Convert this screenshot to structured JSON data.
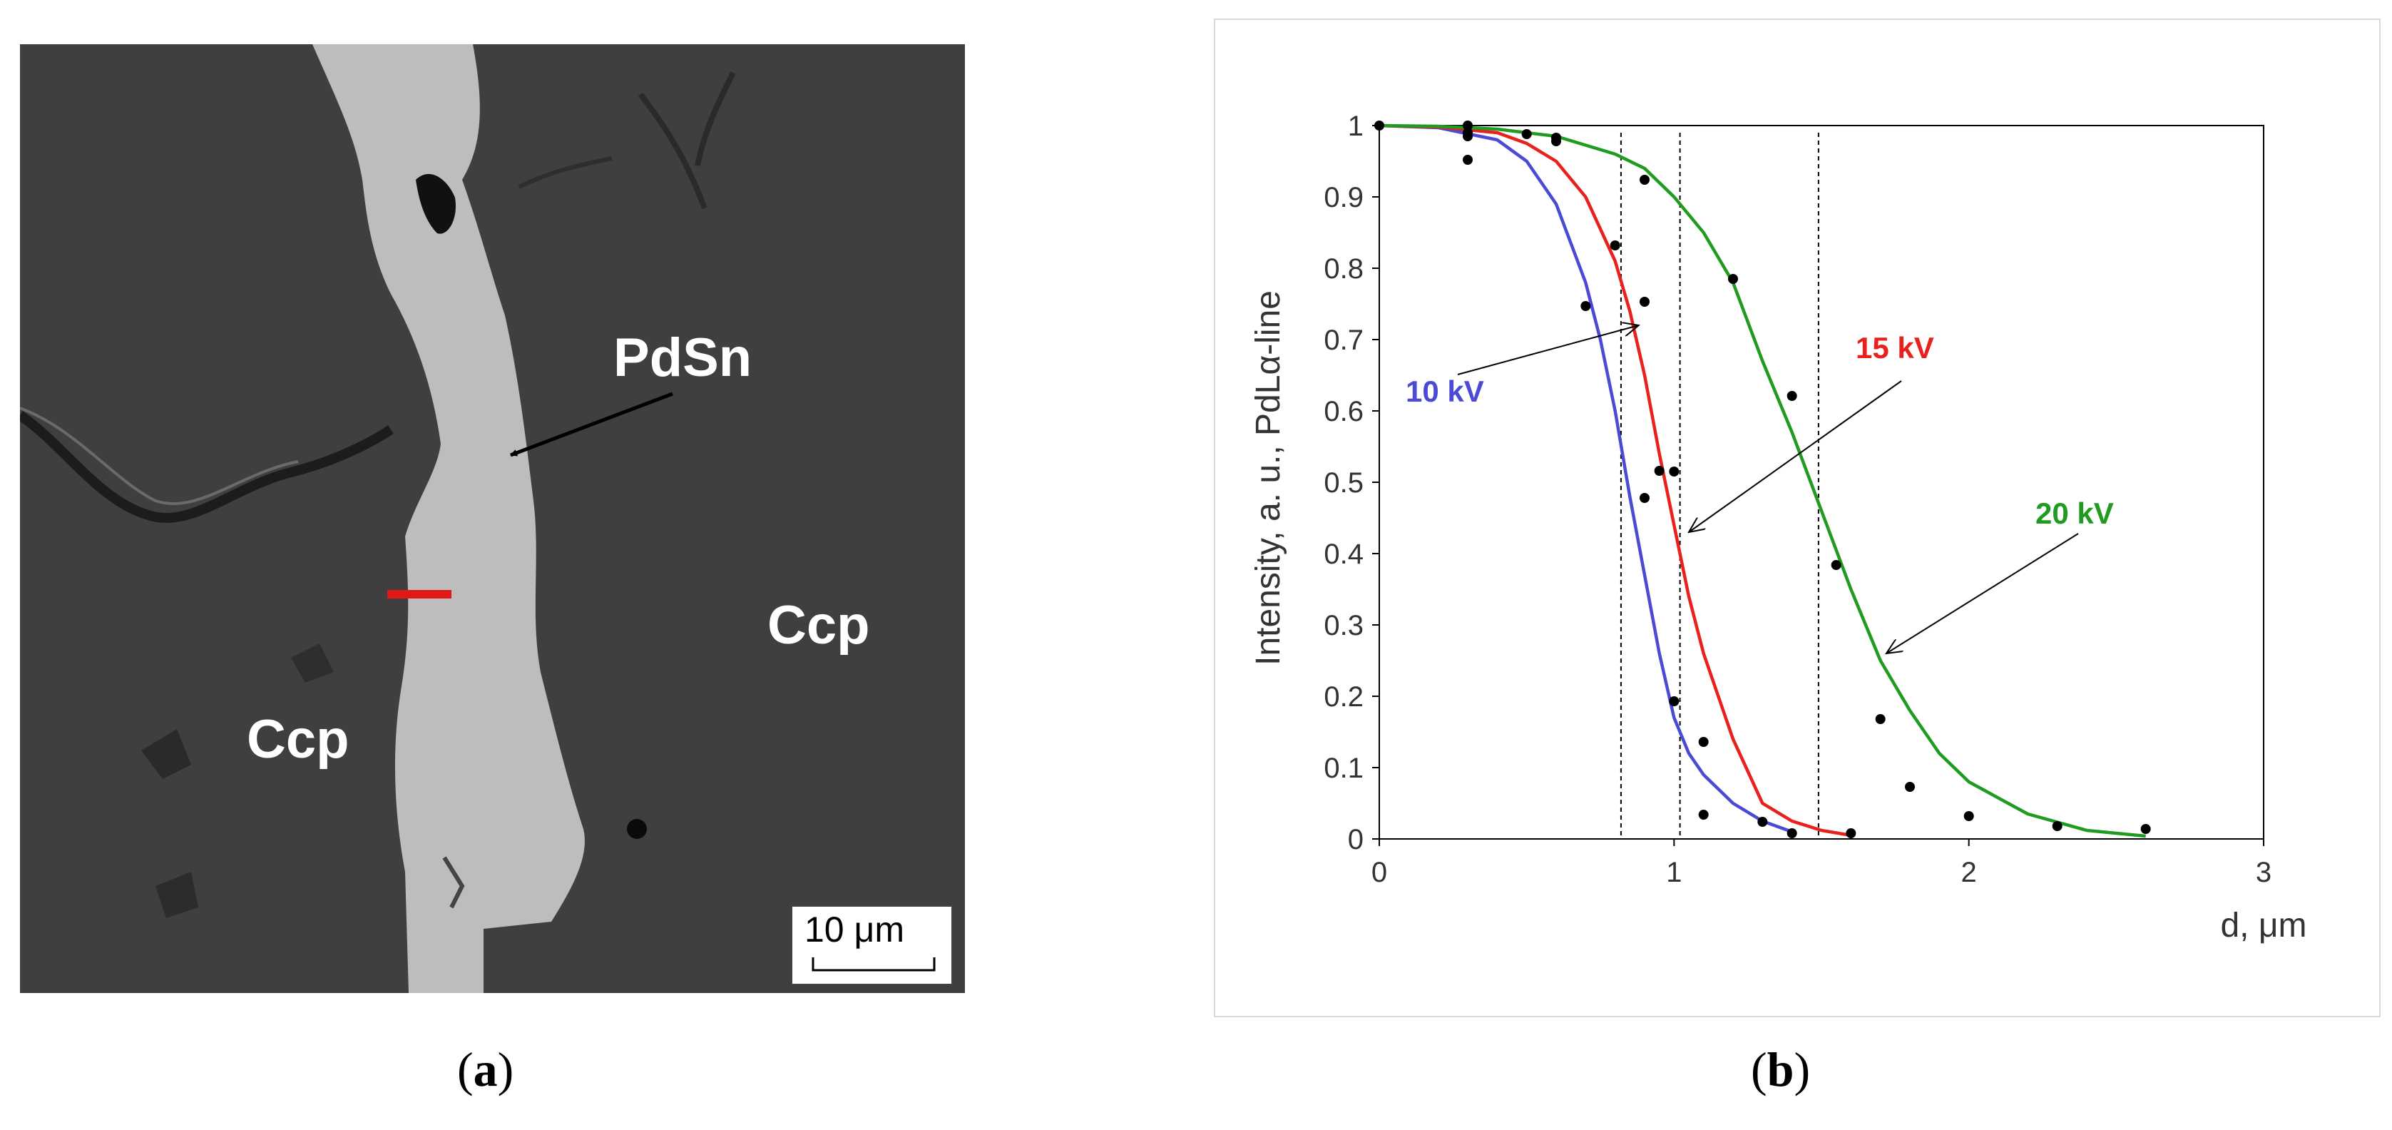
{
  "panel_a": {
    "label": "a",
    "phase_label": "PdSn",
    "matrix_label_right": "Ccp",
    "matrix_label_left": "Ccp",
    "scale_bar_text": "10 μm",
    "colors": {
      "matrix": "#3f3f3f",
      "grain": "#bdbdbd",
      "marker": "#e01818"
    }
  },
  "panel_b": {
    "label": "b"
  },
  "chart_data": {
    "type": "line",
    "xlabel": "d, μm",
    "ylabel": "Intensity, a. u., PdLα-line",
    "xlim": [
      0,
      3
    ],
    "ylim": [
      0,
      1
    ],
    "xticks": [
      "0",
      "1",
      "2",
      "3"
    ],
    "yticks": [
      "0",
      "0.1",
      "0.2",
      "0.3",
      "0.4",
      "0.5",
      "0.6",
      "0.7",
      "0.8",
      "0.9",
      "1"
    ],
    "vertical_reference_lines": [
      0.82,
      1.02,
      1.49
    ],
    "series": [
      {
        "name": "10 kV",
        "color": "#4a4ad4",
        "curve": {
          "x": [
            0,
            0.2,
            0.4,
            0.5,
            0.6,
            0.7,
            0.75,
            0.8,
            0.85,
            0.9,
            0.95,
            1.0,
            1.05,
            1.1,
            1.2,
            1.3,
            1.4
          ],
          "y": [
            1.0,
            0.997,
            0.98,
            0.95,
            0.89,
            0.78,
            0.7,
            0.6,
            0.48,
            0.37,
            0.26,
            0.17,
            0.12,
            0.09,
            0.05,
            0.025,
            0.01
          ]
        }
      },
      {
        "name": "15 kV",
        "color": "#e8211c",
        "curve": {
          "x": [
            0,
            0.2,
            0.4,
            0.5,
            0.6,
            0.7,
            0.8,
            0.85,
            0.9,
            0.95,
            1.0,
            1.05,
            1.1,
            1.2,
            1.3,
            1.4,
            1.5,
            1.6
          ],
          "y": [
            1.0,
            0.998,
            0.99,
            0.975,
            0.95,
            0.9,
            0.81,
            0.74,
            0.65,
            0.54,
            0.44,
            0.34,
            0.26,
            0.14,
            0.05,
            0.025,
            0.012,
            0.005
          ]
        }
      },
      {
        "name": "20 kV",
        "color": "#1f9b1f",
        "curve": {
          "x": [
            0,
            0.2,
            0.4,
            0.6,
            0.8,
            0.9,
            1.0,
            1.1,
            1.2,
            1.3,
            1.4,
            1.5,
            1.6,
            1.7,
            1.8,
            1.9,
            2.0,
            2.2,
            2.4,
            2.6
          ],
          "y": [
            1.0,
            0.999,
            0.995,
            0.985,
            0.96,
            0.94,
            0.9,
            0.85,
            0.78,
            0.67,
            0.57,
            0.46,
            0.35,
            0.25,
            0.18,
            0.12,
            0.08,
            0.035,
            0.012,
            0.004
          ]
        }
      }
    ],
    "measured_points": {
      "x": [
        0.0,
        0.3,
        0.3,
        0.3,
        0.3,
        0.5,
        0.6,
        0.6,
        0.7,
        0.8,
        0.9,
        0.9,
        0.9,
        0.95,
        1.0,
        1.0,
        1.1,
        1.1,
        1.2,
        1.3,
        1.4,
        1.4,
        1.55,
        1.6,
        1.7,
        1.8,
        2.0,
        2.3,
        2.6
      ],
      "y": [
        1.0,
        1.0,
        0.99,
        0.985,
        0.952,
        0.988,
        0.978,
        0.983,
        0.747,
        0.832,
        0.924,
        0.753,
        0.478,
        0.516,
        0.193,
        0.515,
        0.136,
        0.034,
        0.785,
        0.024,
        0.621,
        0.008,
        0.384,
        0.008,
        0.168,
        0.073,
        0.032,
        0.018,
        0.014
      ]
    },
    "annotations": [
      {
        "text": "10 kV",
        "color": "#4a4ad4",
        "arrow_to": [
          0.88,
          0.72
        ]
      },
      {
        "text": "15 kV",
        "color": "#e8211c",
        "arrow_to": [
          1.05,
          0.43
        ]
      },
      {
        "text": "20 kV",
        "color": "#1f9b1f",
        "arrow_to": [
          1.72,
          0.26
        ]
      }
    ]
  }
}
